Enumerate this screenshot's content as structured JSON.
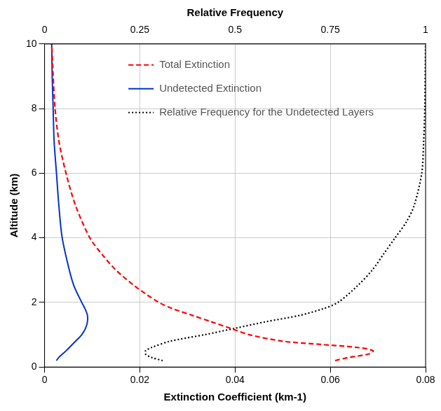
{
  "chart_data": {
    "type": "line",
    "x_label": "Extinction Coefficient (km-1)",
    "x2_label": "Relative Frequency",
    "y_label": "Altitude (km)",
    "xlim": [
      0,
      0.08
    ],
    "xticks": [
      0,
      0.02,
      0.04,
      0.06,
      0.08
    ],
    "x2lim": [
      0,
      1
    ],
    "x2ticks": [
      0,
      0.25,
      0.5,
      0.75,
      1
    ],
    "ylim": [
      0,
      10
    ],
    "yticks": [
      0,
      2,
      4,
      6,
      8,
      10
    ],
    "grid": true,
    "legend": "top",
    "marker": "none",
    "series": [
      {
        "name": "Total Extinction",
        "color": "#ff0000",
        "line_style": "dashed",
        "x": [
          0.061,
          0.064,
          0.068,
          0.069,
          0.066,
          0.058,
          0.05,
          0.043,
          0.039,
          0.035,
          0.031,
          0.027,
          0.024,
          0.019,
          0.015,
          0.012,
          0.0095,
          0.0065,
          0.0045,
          0.003,
          0.0022,
          0.0018,
          0.0015
        ],
        "y": [
          0.2,
          0.3,
          0.4,
          0.5,
          0.6,
          0.7,
          0.8,
          1.0,
          1.2,
          1.4,
          1.6,
          1.8,
          2.0,
          2.5,
          3.0,
          3.5,
          4.0,
          5.0,
          6.0,
          7.0,
          8.0,
          9.0,
          10.0
        ]
      },
      {
        "name": "Undetected Extinction",
        "color": "#0033cc",
        "line_style": "solid",
        "x": [
          0.0025,
          0.003,
          0.0045,
          0.0065,
          0.0078,
          0.0086,
          0.009,
          0.009,
          0.0085,
          0.0078,
          0.0062,
          0.0052,
          0.0037,
          0.003,
          0.0025,
          0.002,
          0.0018,
          0.0016,
          0.0015
        ],
        "y": [
          0.2,
          0.3,
          0.5,
          0.8,
          1.0,
          1.2,
          1.4,
          1.6,
          1.8,
          2.0,
          2.5,
          3.0,
          4.0,
          5.0,
          6.0,
          7.0,
          8.0,
          9.0,
          10.0
        ]
      },
      {
        "name": "Relative Frequency for the Undetected Layers",
        "color": "#000000",
        "line_style": "dotted",
        "axis": "x2",
        "x": [
          0.31,
          0.28,
          0.265,
          0.265,
          0.28,
          0.33,
          0.42,
          0.5,
          0.58,
          0.67,
          0.73,
          0.77,
          0.82,
          0.86,
          0.89,
          0.92,
          0.95,
          0.97,
          0.99,
          0.995,
          0.998,
          1.0
        ],
        "y": [
          0.2,
          0.3,
          0.4,
          0.5,
          0.6,
          0.8,
          1.0,
          1.2,
          1.4,
          1.6,
          1.8,
          2.0,
          2.5,
          3.0,
          3.5,
          4.0,
          4.5,
          5.0,
          6.0,
          7.0,
          8.0,
          10.0
        ]
      }
    ]
  }
}
